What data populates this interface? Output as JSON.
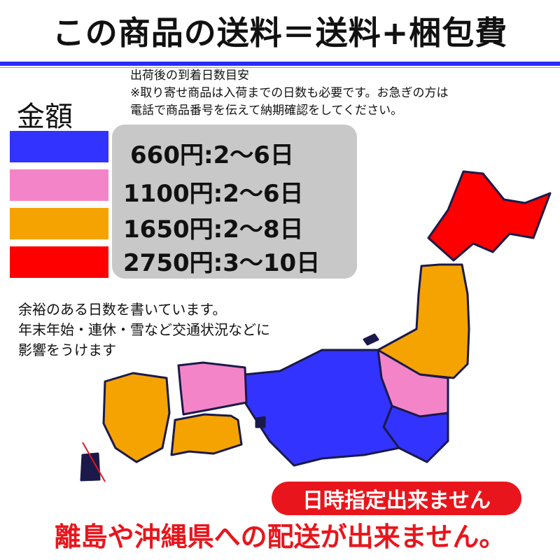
{
  "title": "この商品の送料＝送料+梱包費",
  "note": {
    "line1": "出荷後の到着日数目安",
    "line2": "※取り寄せ商品は入荷までの日数も必要です。お急ぎの方は",
    "line3": "電話で商品番号を伝えて納期確認をしてください。"
  },
  "legend": {
    "label": "金額",
    "items": [
      {
        "price": "660円:2〜6日",
        "color": "#3333ff"
      },
      {
        "price": "1100円:2〜6日",
        "color": "#f484c8"
      },
      {
        "price": "1650円:2〜8日",
        "color": "#f5a300"
      },
      {
        "price": "2750円:3〜10日",
        "color": "#ff0000"
      }
    ]
  },
  "caution": {
    "line1": "余裕のある日数を書いています。",
    "line2": "年末年始・連休・雪など交通状況などに",
    "line3": "影響をうけます"
  },
  "no_date": "日時指定出来ません",
  "no_island": "離島や沖縄県への配送が出来ません。"
}
